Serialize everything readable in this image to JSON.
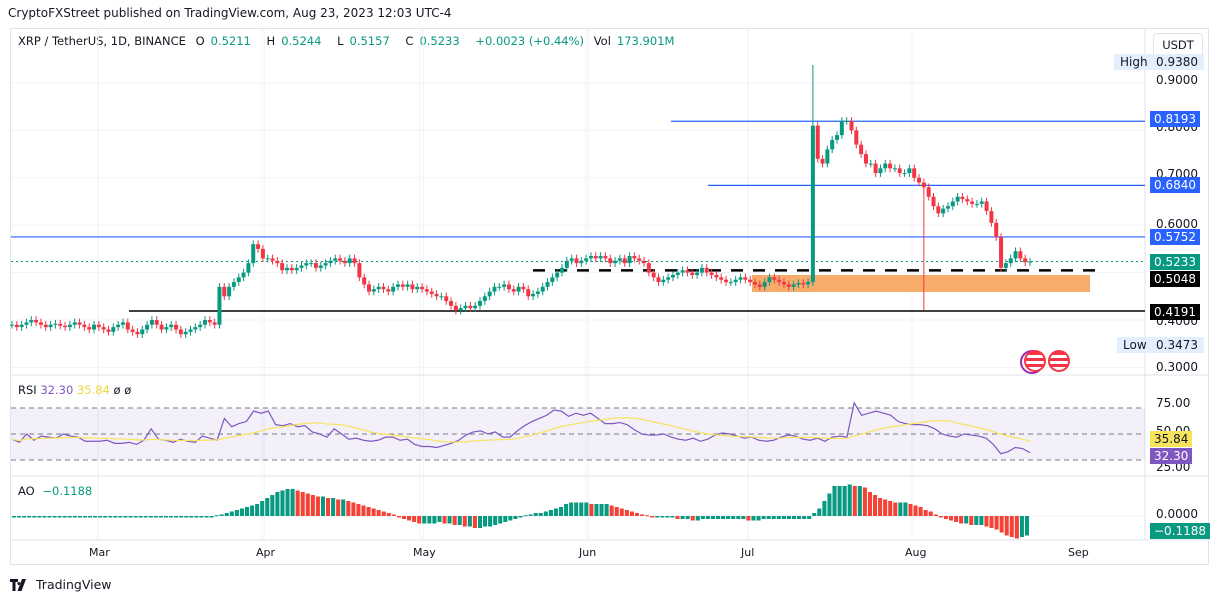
{
  "header": {
    "published": "CryptoFXStreet published on TradingView.com, Aug 23, 2023 12:03 UTC-4"
  },
  "legend": {
    "symbol": "XRP / TetherUS, 1D, BINANCE",
    "open_label": "O",
    "open": "0.5211",
    "high_label": "H",
    "high": "0.5244",
    "low_label": "L",
    "low": "0.5157",
    "close_label": "C",
    "close": "0.5233",
    "change": "+0.0023 (+0.44%)",
    "vol_label": "Vol",
    "vol": "173.901M"
  },
  "price_axis": {
    "currency": "USDT",
    "ticks": [
      "0.9000",
      "0.8000",
      "0.7000",
      "0.6000",
      "0.5000",
      "0.4000",
      "0.3000"
    ],
    "high_label": "High",
    "high_value": "0.9380",
    "low_label": "Low",
    "low_value": "0.3473",
    "tags": {
      "r1": "0.8193",
      "r2": "0.6840",
      "r3": "0.5752",
      "last": "0.5233",
      "s1": "0.5048",
      "s2": "0.4191"
    }
  },
  "rsi": {
    "label": "RSI",
    "value": "32.30",
    "ma": "35.84",
    "extra1": "ø",
    "extra2": "ø",
    "ticks": [
      "75.00",
      "50.00",
      "25.00"
    ]
  },
  "ao": {
    "label": "AO",
    "value": "−0.1188",
    "tick": "0.0000"
  },
  "time_axis": [
    "Mar",
    "Apr",
    "May",
    "Jun",
    "Jul",
    "Aug",
    "Sep"
  ],
  "footer": {
    "brand": "TradingView"
  },
  "colors": {
    "up": "#089981",
    "down": "#f23645",
    "blue_line": "#2962ff",
    "zone": "#f7a35c",
    "rsi": "#7e57c2",
    "rsi_ma": "#f7e35c",
    "ao_up": "#089981",
    "ao_down": "#f44336"
  },
  "chart_data": [
    {
      "type": "candlestick",
      "title": "XRP / TetherUS, 1D, BINANCE",
      "xlabel": "",
      "ylabel": "USDT",
      "x_ticks": [
        "Mar",
        "Apr",
        "May",
        "Jun",
        "Jul",
        "Aug",
        "Sep"
      ],
      "ylim": [
        0.3,
        0.94
      ],
      "ohlc_last": {
        "open": 0.5211,
        "high": 0.5244,
        "low": 0.5157,
        "close": 0.5233
      },
      "period_high": 0.938,
      "period_low": 0.3473,
      "horizontal_levels": [
        {
          "value": 0.8193,
          "style": "solid",
          "color": "blue"
        },
        {
          "value": 0.684,
          "style": "solid",
          "color": "blue"
        },
        {
          "value": 0.5752,
          "style": "solid",
          "color": "blue"
        },
        {
          "value": 0.5048,
          "style": "dashed",
          "color": "black"
        },
        {
          "value": 0.4191,
          "style": "solid",
          "color": "black"
        }
      ],
      "zones": [
        {
          "from": 0.465,
          "to": 0.5,
          "color": "orange",
          "x_start": "Jul 1",
          "x_end": "Sep 1"
        }
      ],
      "approx_closes": {
        "mid_Feb": 0.38,
        "Mar": 0.38,
        "late_Mar": 0.54,
        "Apr": 0.52,
        "mid_Apr": 0.51,
        "May": 0.46,
        "mid_May": 0.43,
        "Jun": 0.52,
        "mid_Jun": 0.49,
        "Jul": 0.48,
        "Jul_13": 0.81,
        "Jul_20": 0.78,
        "Aug": 0.7,
        "Aug_10": 0.63,
        "Aug_17": 0.5,
        "Aug_23": 0.5233
      }
    },
    {
      "type": "line",
      "title": "RSI",
      "series": [
        {
          "name": "RSI",
          "last": 32.3
        },
        {
          "name": "RSI MA",
          "last": 35.84
        }
      ],
      "ylim": [
        20,
        90
      ],
      "bands": [
        75,
        50,
        25
      ]
    },
    {
      "type": "bar",
      "title": "AO",
      "last": -0.1188,
      "zero_line": 0.0
    }
  ]
}
